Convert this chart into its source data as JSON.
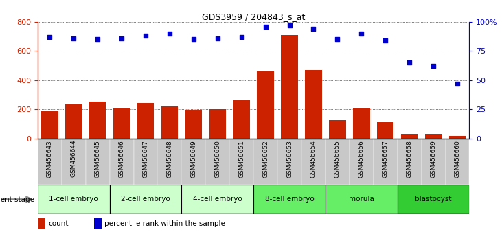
{
  "title": "GDS3959 / 204843_s_at",
  "samples": [
    "GSM456643",
    "GSM456644",
    "GSM456645",
    "GSM456646",
    "GSM456647",
    "GSM456648",
    "GSM456649",
    "GSM456650",
    "GSM456651",
    "GSM456652",
    "GSM456653",
    "GSM456654",
    "GSM456655",
    "GSM456656",
    "GSM456657",
    "GSM456658",
    "GSM456659",
    "GSM456660"
  ],
  "counts": [
    185,
    240,
    255,
    205,
    245,
    220,
    195,
    200,
    265,
    460,
    710,
    470,
    125,
    205,
    110,
    30,
    30,
    20
  ],
  "percentile_ranks": [
    87,
    86,
    85,
    86,
    88,
    90,
    85,
    86,
    87,
    96,
    97,
    94,
    85,
    90,
    84,
    65,
    62,
    47
  ],
  "bar_color": "#cc2200",
  "dot_color": "#0000cc",
  "ylim_left": [
    0,
    800
  ],
  "ylim_right": [
    0,
    100
  ],
  "yticks_left": [
    0,
    200,
    400,
    600,
    800
  ],
  "yticks_right": [
    0,
    25,
    50,
    75,
    100
  ],
  "yticklabels_right": [
    "0",
    "25",
    "50",
    "75",
    "100%"
  ],
  "stages": [
    {
      "label": "1-cell embryo",
      "start": 0,
      "end": 2,
      "color": "#ccffcc"
    },
    {
      "label": "2-cell embryo",
      "start": 3,
      "end": 5,
      "color": "#ccffcc"
    },
    {
      "label": "4-cell embryo",
      "start": 6,
      "end": 8,
      "color": "#ccffcc"
    },
    {
      "label": "8-cell embryo",
      "start": 9,
      "end": 11,
      "color": "#66ee66"
    },
    {
      "label": "morula",
      "start": 12,
      "end": 14,
      "color": "#66ee66"
    },
    {
      "label": "blastocyst",
      "start": 15,
      "end": 17,
      "color": "#33cc33"
    }
  ],
  "dev_stage_label": "development stage",
  "legend_count_label": "count",
  "legend_pct_label": "percentile rank within the sample",
  "bg_color": "#ffffff",
  "label_bg": "#c8c8c8"
}
